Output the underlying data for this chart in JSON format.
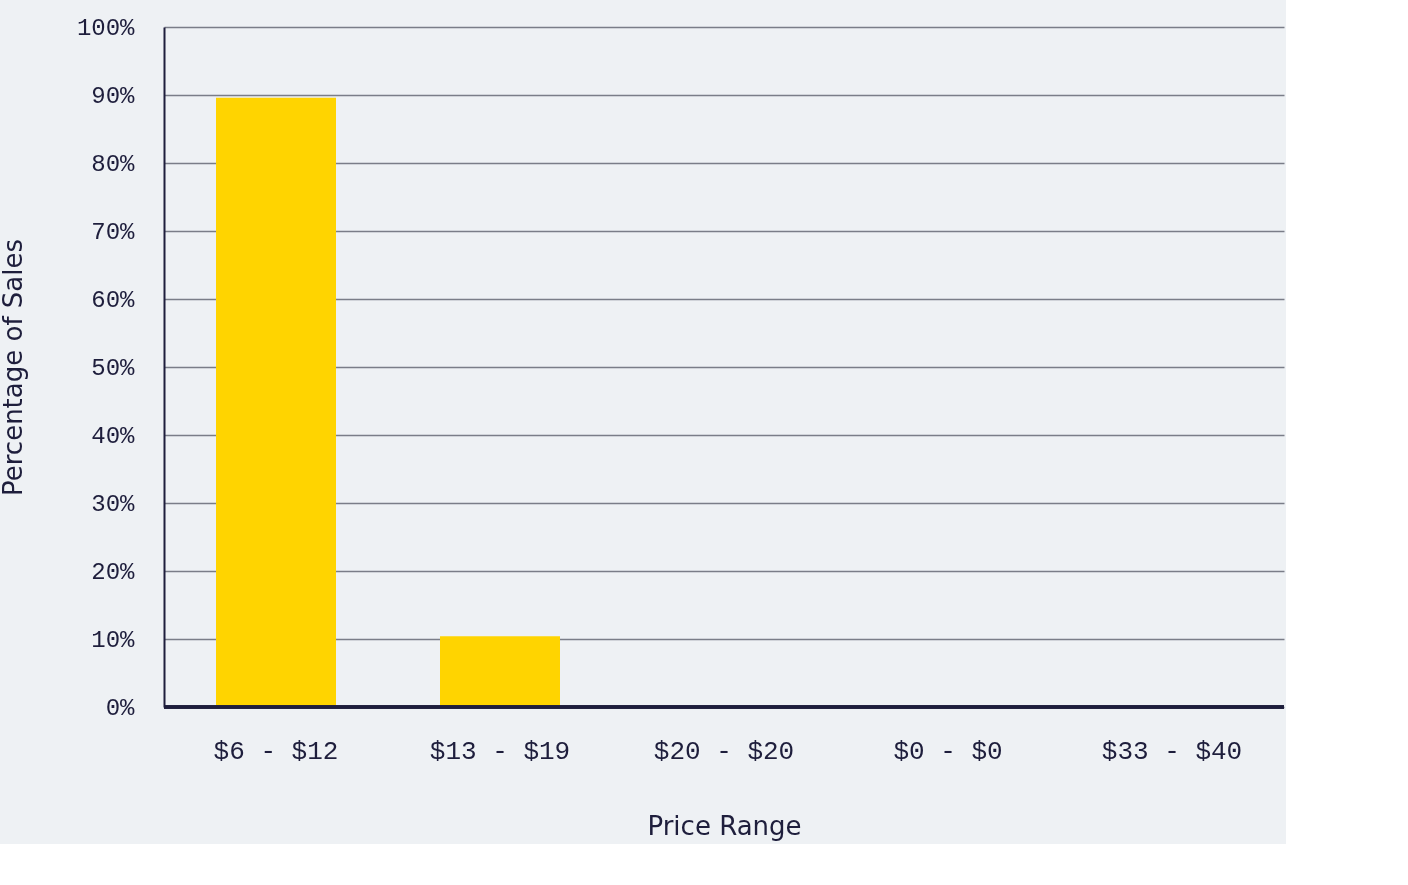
{
  "chart_data": {
    "type": "bar",
    "xlabel": "Price Range",
    "ylabel": "Percentage of Sales",
    "categories": [
      "$6 - $12",
      "$13 - $19",
      "$20 - $20",
      "$0 - $0",
      "$33 - $40"
    ],
    "values": [
      89.6,
      10.4,
      0,
      0,
      0
    ],
    "color": "#ffd400",
    "ylim": [
      0,
      100
    ],
    "yticks": [
      {
        "value": 0,
        "label": "0%"
      },
      {
        "value": 10,
        "label": "10%"
      },
      {
        "value": 20,
        "label": "20%"
      },
      {
        "value": 30,
        "label": "30%"
      },
      {
        "value": 40,
        "label": "40%"
      },
      {
        "value": 50,
        "label": "50%"
      },
      {
        "value": 60,
        "label": "60%"
      },
      {
        "value": 70,
        "label": "70%"
      },
      {
        "value": 80,
        "label": "80%"
      },
      {
        "value": 90,
        "label": "90%"
      },
      {
        "value": 100,
        "label": "100%"
      }
    ],
    "grid": "y"
  }
}
